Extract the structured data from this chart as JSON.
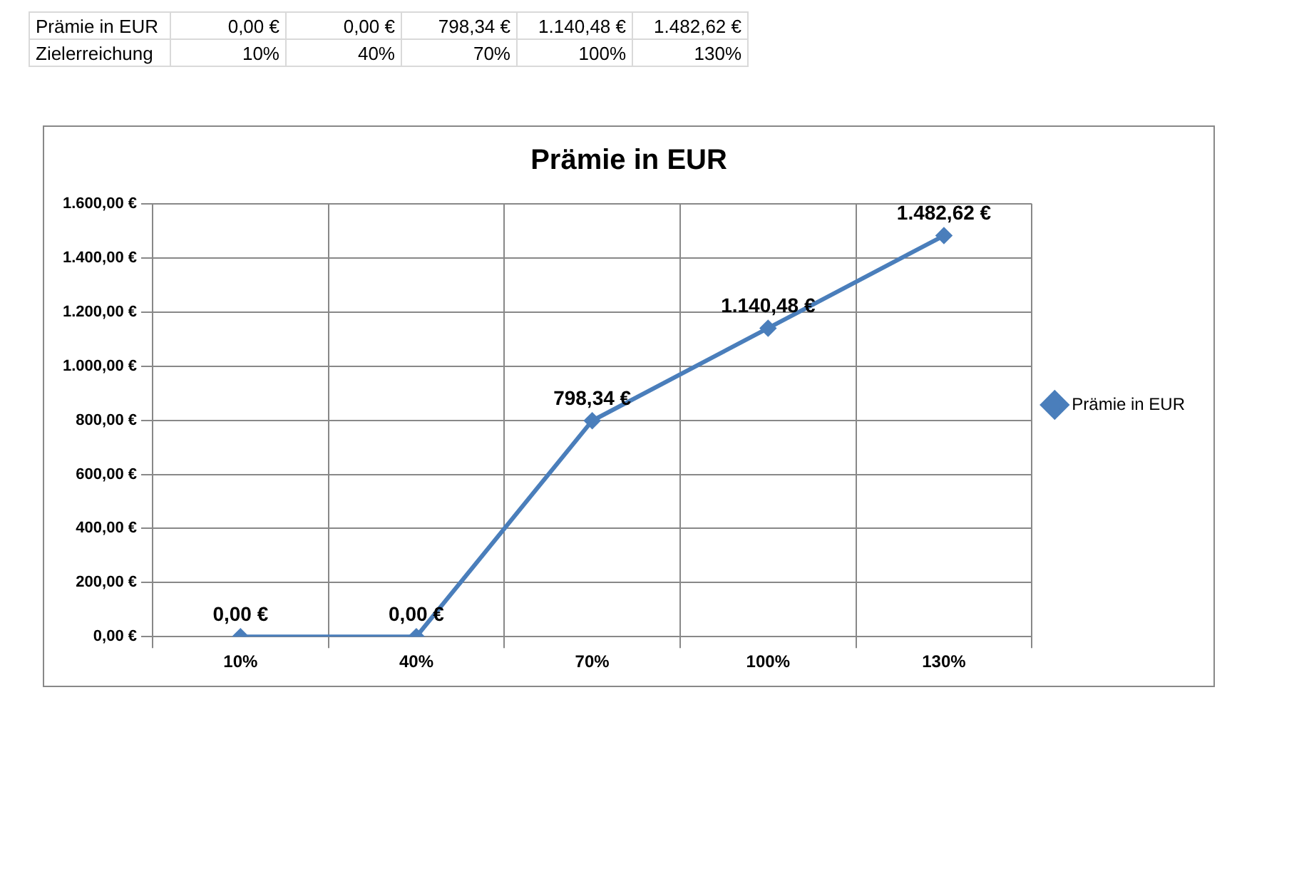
{
  "chart_data": {
    "type": "line",
    "title": "Prämie in EUR",
    "categories": [
      "10%",
      "40%",
      "70%",
      "100%",
      "130%"
    ],
    "series": [
      {
        "name": "Prämie in EUR",
        "color": "#4a7ebb",
        "values": [
          0,
          0,
          798.34,
          1140.48,
          1482.62
        ],
        "value_labels": [
          "0,00 €",
          "0,00 €",
          "798,34 €",
          "1.140,48 €",
          "1.482,62 €"
        ]
      }
    ],
    "ylim": [
      0,
      1600
    ],
    "yticks": [
      {
        "value": 0,
        "label": "0,00 €"
      },
      {
        "value": 200,
        "label": "200,00 €"
      },
      {
        "value": 400,
        "label": "400,00 €"
      },
      {
        "value": 600,
        "label": "600,00 €"
      },
      {
        "value": 800,
        "label": "800,00 €"
      },
      {
        "value": 1000,
        "label": "1.000,00 €"
      },
      {
        "value": 1200,
        "label": "1.200,00 €"
      },
      {
        "value": 1400,
        "label": "1.400,00 €"
      },
      {
        "value": 1600,
        "label": "1.600,00 €"
      }
    ],
    "grid": true,
    "legend": "right",
    "marker": "diamond",
    "line_style": "solid",
    "annotations": [
      "Zielerreichung"
    ]
  }
}
